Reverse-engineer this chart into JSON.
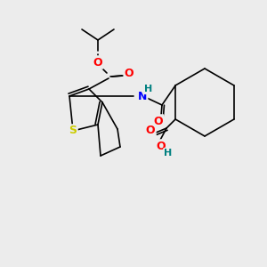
{
  "bg_color": "#ececec",
  "bond_color": "#000000",
  "atom_colors": {
    "O": "#ff0000",
    "S": "#cccc00",
    "N": "#0000ff",
    "H_on_N": "#008080",
    "H_on_O": "#008080"
  },
  "font_size_atom": 9,
  "line_width": 1.2
}
